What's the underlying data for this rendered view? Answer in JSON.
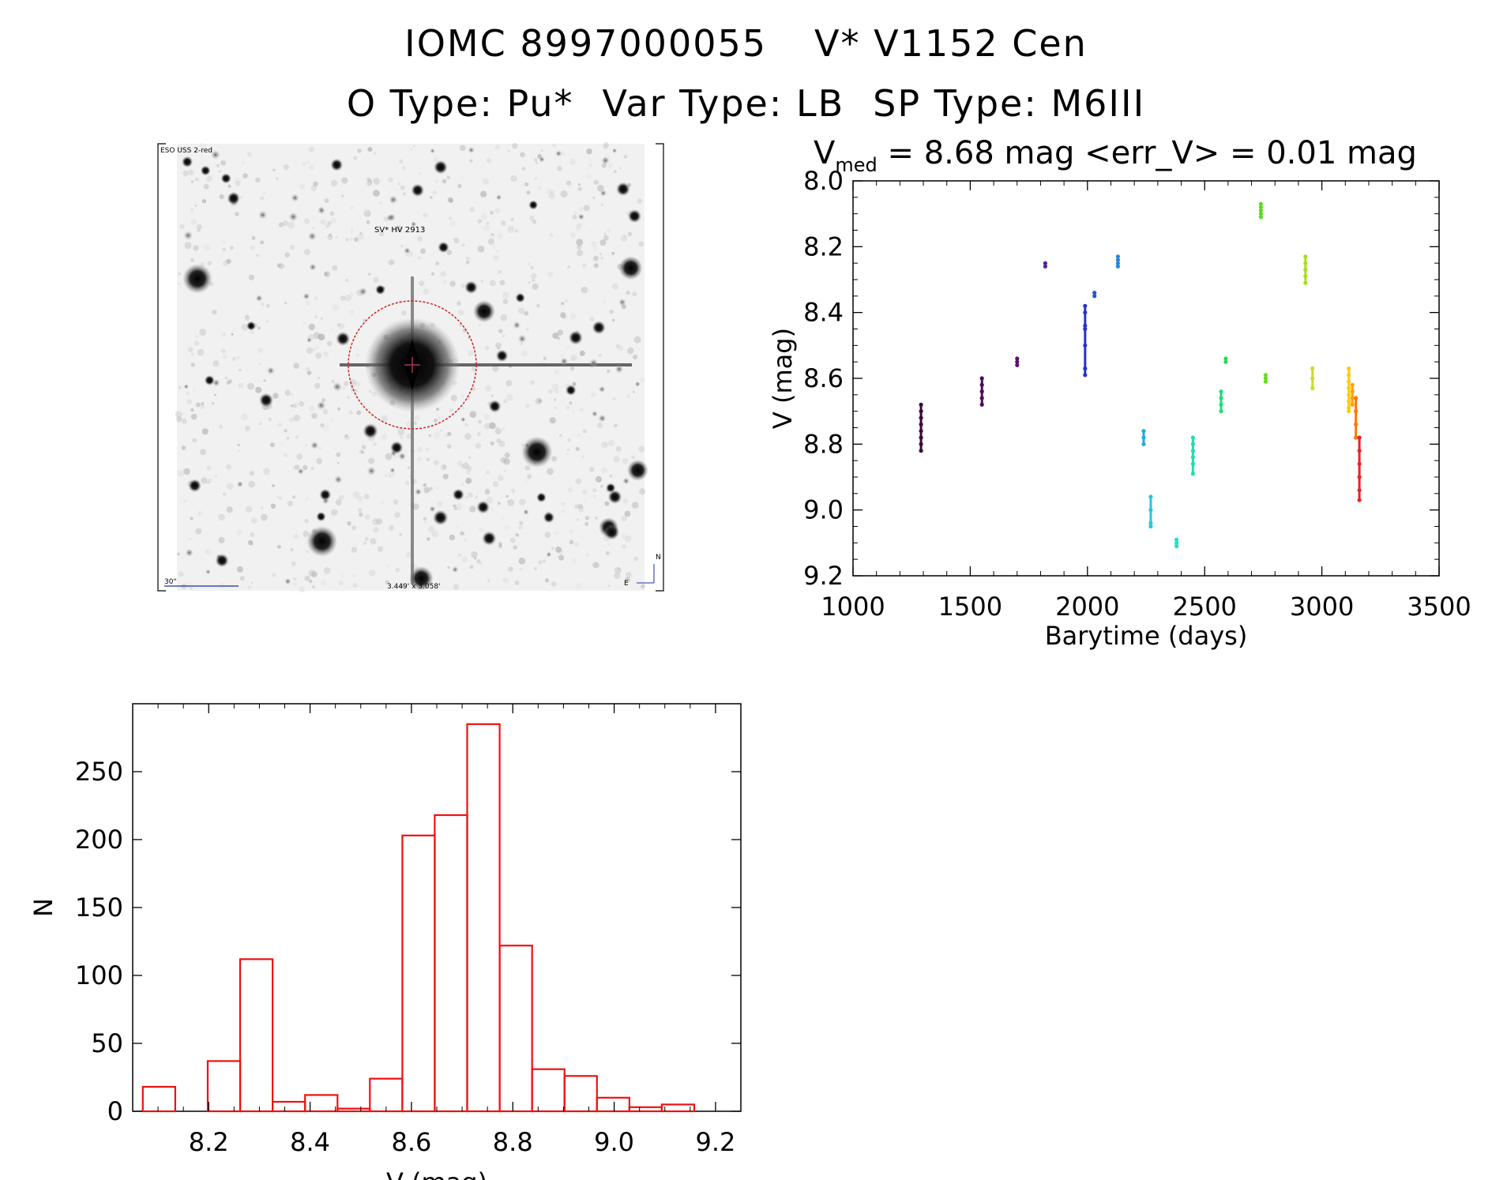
{
  "header": {
    "object_id": "IOMC 8997000055",
    "object_name": "V* V1152 Cen",
    "otype": "O Type: Pu*",
    "vartype": "Var Type: LB",
    "sptype": "SP Type: M6III"
  },
  "image_panel": {
    "survey_label": "ESO USS 2-red",
    "target_label": "SV* HV 2913",
    "scale_label": "30\"",
    "fov_label": "3.449' x 3.058'",
    "north_label": "N",
    "east_label": "E"
  },
  "colors": {
    "histogram_bar": "#ee1111",
    "marker_circle": "#cc2222",
    "image_labels": "#1e2ea0"
  },
  "chart_data": [
    {
      "type": "scatter",
      "title_main": "V",
      "title_sub": "med",
      "title_rest": " = 8.68 mag <err_V> = 0.01 mag",
      "xlabel": "Barytime (days)",
      "ylabel": "V (mag)",
      "xlim": [
        1000,
        3500
      ],
      "ylim": [
        9.2,
        8.0
      ],
      "y_inverted": true,
      "xticks": [
        1000,
        1500,
        2000,
        2500,
        3000,
        3500
      ],
      "yticks": [
        "8.0",
        "8.2",
        "8.4",
        "8.6",
        "8.8",
        "9.0",
        "9.2"
      ],
      "color_scale": "rainbow by time",
      "groups": [
        {
          "x": 1290,
          "y": [
            8.68,
            8.7,
            8.72,
            8.74,
            8.76,
            8.78,
            8.8,
            8.82
          ],
          "color": "#3a0a3a"
        },
        {
          "x": 1550,
          "y": [
            8.6,
            8.62,
            8.64,
            8.66,
            8.68
          ],
          "color": "#4a0a5a"
        },
        {
          "x": 1700,
          "y": [
            8.54,
            8.55,
            8.56
          ],
          "color": "#5a1070"
        },
        {
          "x": 1820,
          "y": [
            8.25,
            8.26
          ],
          "color": "#5520a0"
        },
        {
          "x": 1990,
          "y": [
            8.38,
            8.4,
            8.44,
            8.45,
            8.5,
            8.57,
            8.59
          ],
          "color": "#2233cc"
        },
        {
          "x": 2030,
          "y": [
            8.34,
            8.35
          ],
          "color": "#2255dd"
        },
        {
          "x": 2130,
          "y": [
            8.23,
            8.24,
            8.25,
            8.26
          ],
          "color": "#2288dd"
        },
        {
          "x": 2240,
          "y": [
            8.76,
            8.78,
            8.8
          ],
          "color": "#22aadd"
        },
        {
          "x": 2270,
          "y": [
            8.96,
            9.0,
            9.04,
            9.05
          ],
          "color": "#22c8dd"
        },
        {
          "x": 2380,
          "y": [
            9.09,
            9.1,
            9.11
          ],
          "color": "#22ddcc"
        },
        {
          "x": 2450,
          "y": [
            8.78,
            8.8,
            8.82,
            8.84,
            8.86,
            8.89
          ],
          "color": "#22ddaa"
        },
        {
          "x": 2570,
          "y": [
            8.64,
            8.66,
            8.68,
            8.7
          ],
          "color": "#22dd77"
        },
        {
          "x": 2590,
          "y": [
            8.54,
            8.55
          ],
          "color": "#22dd55"
        },
        {
          "x": 2740,
          "y": [
            8.07,
            8.08,
            8.09,
            8.1,
            8.11
          ],
          "color": "#55dd22"
        },
        {
          "x": 2760,
          "y": [
            8.59,
            8.6,
            8.61
          ],
          "color": "#66dd22"
        },
        {
          "x": 2930,
          "y": [
            8.23,
            8.25,
            8.27,
            8.29,
            8.31
          ],
          "color": "#aadd22"
        },
        {
          "x": 2960,
          "y": [
            8.57,
            8.6,
            8.63
          ],
          "color": "#c8dd22"
        },
        {
          "x": 3115,
          "y": [
            8.57,
            8.59,
            8.61,
            8.63,
            8.65,
            8.67,
            8.69,
            8.7
          ],
          "color": "#ffcc00"
        },
        {
          "x": 3130,
          "y": [
            8.62,
            8.64,
            8.66,
            8.68
          ],
          "color": "#ffa000"
        },
        {
          "x": 3145,
          "y": [
            8.66,
            8.7,
            8.74,
            8.78
          ],
          "color": "#ff7700"
        },
        {
          "x": 3160,
          "y": [
            8.78,
            8.82,
            8.86,
            8.9,
            8.94,
            8.97
          ],
          "color": "#ee2222"
        }
      ]
    },
    {
      "type": "bar",
      "xlabel": "V (mag)",
      "ylabel": "N",
      "xlim": [
        8.05,
        9.25
      ],
      "ylim": [
        0,
        300
      ],
      "xticks": [
        "8.2",
        "8.4",
        "8.6",
        "8.8",
        "9.0",
        "9.2"
      ],
      "yticks": [
        "0",
        "50",
        "100",
        "150",
        "200",
        "250"
      ],
      "bin_width": 0.064,
      "bins": [
        {
          "x0": 8.07,
          "n": 18
        },
        {
          "x0": 8.134,
          "n": 0
        },
        {
          "x0": 8.198,
          "n": 37
        },
        {
          "x0": 8.262,
          "n": 112
        },
        {
          "x0": 8.326,
          "n": 7
        },
        {
          "x0": 8.39,
          "n": 12
        },
        {
          "x0": 8.454,
          "n": 2
        },
        {
          "x0": 8.518,
          "n": 24
        },
        {
          "x0": 8.582,
          "n": 203
        },
        {
          "x0": 8.646,
          "n": 218
        },
        {
          "x0": 8.71,
          "n": 285
        },
        {
          "x0": 8.774,
          "n": 122
        },
        {
          "x0": 8.838,
          "n": 31
        },
        {
          "x0": 8.902,
          "n": 26
        },
        {
          "x0": 8.966,
          "n": 10
        },
        {
          "x0": 9.03,
          "n": 3
        },
        {
          "x0": 9.094,
          "n": 5
        }
      ]
    }
  ]
}
